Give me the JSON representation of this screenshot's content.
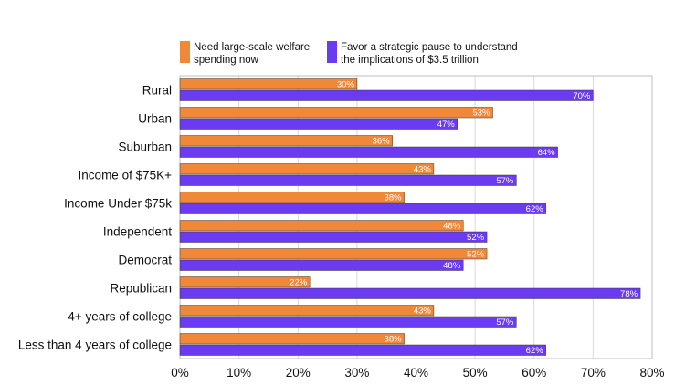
{
  "chart_data": {
    "type": "bar",
    "orientation": "horizontal",
    "categories": [
      "Rural",
      "Urban",
      "Suburban",
      "Income of $75K+",
      "Income Under $75k",
      "Independent",
      "Democrat",
      "Republican",
      "4+ years of college",
      "Less than 4 years of college"
    ],
    "series": [
      {
        "name": "Need large-scale welfare spending now",
        "legend_lines": [
          "Need large-scale welfare",
          "spending now"
        ],
        "color": "#F0883A",
        "values": [
          30,
          53,
          36,
          43,
          38,
          48,
          52,
          22,
          43,
          38
        ],
        "value_labels": [
          "30%",
          "53%",
          "36%",
          "43%",
          "38%",
          "48%",
          "52%",
          "22%",
          "43%",
          "38%"
        ]
      },
      {
        "name": "Favor a strategic pause to understand the implications of $3.5 trillion",
        "legend_lines": [
          "Favor a strategic pause to understand",
          "the implications of $3.5 trillion"
        ],
        "color": "#6A3BF0",
        "values": [
          70,
          47,
          64,
          57,
          62,
          52,
          48,
          78,
          57,
          62
        ],
        "value_labels": [
          "70%",
          "47%",
          "64%",
          "57%",
          "62%",
          "52%",
          "48%",
          "78%",
          "57%",
          "62%"
        ]
      }
    ],
    "xlim": [
      0,
      80
    ],
    "xticks": [
      0,
      10,
      20,
      30,
      40,
      50,
      60,
      70,
      80
    ],
    "xtick_labels": [
      "0%",
      "10%",
      "20%",
      "30%",
      "40%",
      "50%",
      "60%",
      "70%",
      "80%"
    ],
    "grid": true,
    "legend_position": "top"
  }
}
